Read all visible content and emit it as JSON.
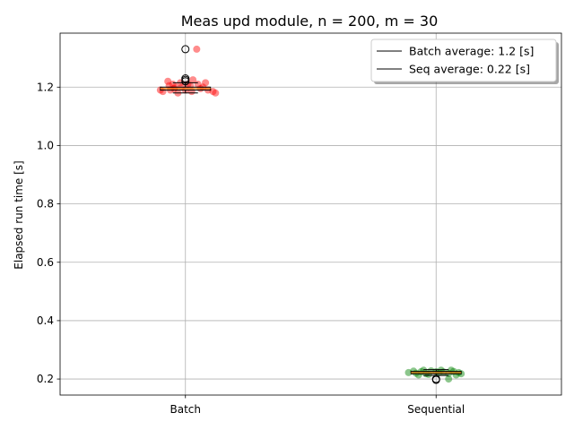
{
  "chart_data": {
    "type": "box-scatter",
    "title": "Meas upd module, n = 200, m = 30",
    "xlabel": "",
    "ylabel": "Elapsed run time [s]",
    "categories": [
      "Batch",
      "Sequential"
    ],
    "ylim": [
      0.145,
      1.385
    ],
    "yticks": [
      0.2,
      0.4,
      0.6,
      0.8,
      1.0,
      1.2
    ],
    "ytick_labels": [
      "0.2",
      "0.4",
      "0.6",
      "0.8",
      "1.0",
      "1.2"
    ],
    "grid": true,
    "legend_position": "upper right",
    "legend": [
      {
        "label": "Batch average: 1.2 [s]",
        "color": "#000000"
      },
      {
        "label": "Seq average: 0.22 [s]",
        "color": "#000000"
      }
    ],
    "series": [
      {
        "name": "Batch",
        "color": "#ff0000",
        "box": {
          "q1": 1.19,
          "median": 1.195,
          "q3": 1.2,
          "whisker_low": 1.18,
          "whisker_high": 1.215
        },
        "outliers": [
          1.33,
          1.23,
          1.225,
          1.22
        ],
        "points": [
          {
            "dx": -0.07,
            "y": 1.22
          },
          {
            "dx": -0.05,
            "y": 1.21
          },
          {
            "dx": -0.04,
            "y": 1.2
          },
          {
            "dx": -0.06,
            "y": 1.19
          },
          {
            "dx": -0.02,
            "y": 1.215
          },
          {
            "dx": 0.02,
            "y": 1.205
          },
          {
            "dx": 0.03,
            "y": 1.225
          },
          {
            "dx": 0.05,
            "y": 1.21
          },
          {
            "dx": 0.07,
            "y": 1.2
          },
          {
            "dx": 0.09,
            "y": 1.19
          },
          {
            "dx": 0.11,
            "y": 1.185
          },
          {
            "dx": -0.09,
            "y": 1.185
          },
          {
            "dx": -0.1,
            "y": 1.19
          },
          {
            "dx": 0.12,
            "y": 1.18
          },
          {
            "dx": 0.045,
            "y": 1.33
          },
          {
            "dx": -0.03,
            "y": 1.18
          },
          {
            "dx": 0.0,
            "y": 1.19
          },
          {
            "dx": 0.01,
            "y": 1.21
          },
          {
            "dx": 0.06,
            "y": 1.195
          },
          {
            "dx": -0.065,
            "y": 1.205
          },
          {
            "dx": 0.08,
            "y": 1.215
          },
          {
            "dx": -0.015,
            "y": 1.2
          },
          {
            "dx": 0.025,
            "y": 1.185
          },
          {
            "dx": -0.045,
            "y": 1.195
          }
        ]
      },
      {
        "name": "Sequential",
        "color": "#008000",
        "box": {
          "q1": 0.218,
          "median": 0.222,
          "q3": 0.226,
          "whisker_low": 0.212,
          "whisker_high": 0.232
        },
        "outliers": [
          0.2,
          0.197
        ],
        "points": [
          {
            "dx": -0.11,
            "y": 0.222
          },
          {
            "dx": -0.08,
            "y": 0.22
          },
          {
            "dx": -0.06,
            "y": 0.225
          },
          {
            "dx": -0.04,
            "y": 0.218
          },
          {
            "dx": -0.02,
            "y": 0.228
          },
          {
            "dx": 0.01,
            "y": 0.221
          },
          {
            "dx": 0.03,
            "y": 0.224
          },
          {
            "dx": 0.05,
            "y": 0.219
          },
          {
            "dx": 0.07,
            "y": 0.226
          },
          {
            "dx": 0.09,
            "y": 0.222
          },
          {
            "dx": 0.1,
            "y": 0.218
          },
          {
            "dx": -0.07,
            "y": 0.214
          },
          {
            "dx": 0.05,
            "y": 0.2
          },
          {
            "dx": 0.02,
            "y": 0.23
          },
          {
            "dx": -0.03,
            "y": 0.216
          },
          {
            "dx": 0.08,
            "y": 0.214
          },
          {
            "dx": -0.09,
            "y": 0.227
          },
          {
            "dx": 0.0,
            "y": 0.225
          },
          {
            "dx": 0.06,
            "y": 0.23
          },
          {
            "dx": -0.05,
            "y": 0.23
          }
        ]
      }
    ]
  }
}
